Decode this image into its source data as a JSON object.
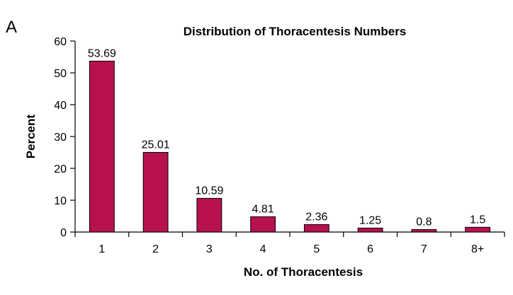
{
  "panel_label": "A",
  "chart_data": {
    "type": "bar",
    "title": "Distribution of Thoracentesis Numbers",
    "xlabel": "No. of Thoracentesis",
    "ylabel": "Percent",
    "categories": [
      "1",
      "2",
      "3",
      "4",
      "5",
      "6",
      "7",
      "8+"
    ],
    "values": [
      53.69,
      25.01,
      10.59,
      4.81,
      2.36,
      1.25,
      0.8,
      1.5
    ],
    "value_labels": [
      "53.69",
      "25.01",
      "10.59",
      "4.81",
      "2.36",
      "1.25",
      "0.8",
      "1.5"
    ],
    "ylim": [
      0,
      60
    ],
    "yticks": [
      0,
      10,
      20,
      30,
      40,
      50,
      60
    ],
    "ytick_labels": [
      "0",
      "10",
      "20",
      "30",
      "40",
      "50",
      "60"
    ],
    "grid": false,
    "bar_color": "#b8114f",
    "bar_edge_color": "#000000"
  }
}
